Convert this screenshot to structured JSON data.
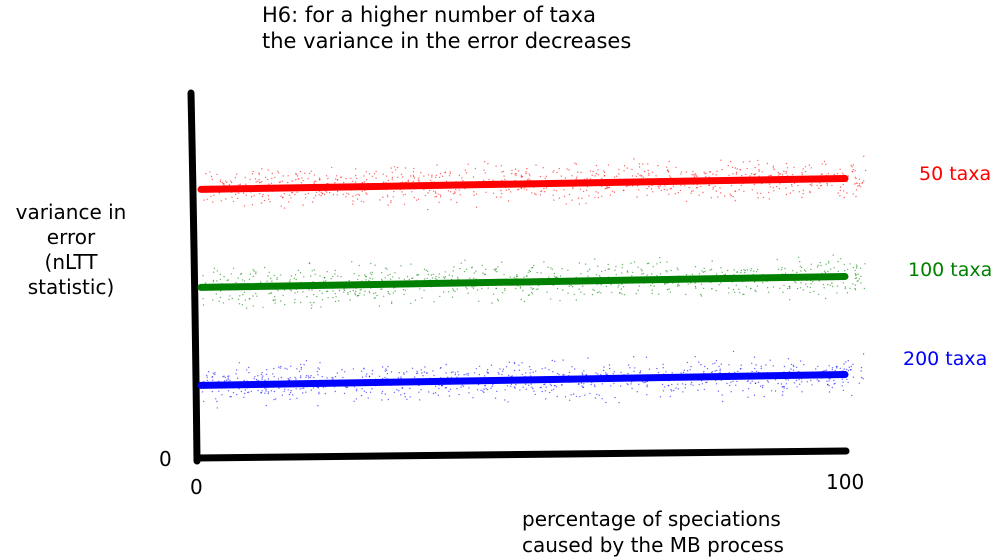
{
  "title": {
    "line1": "H6: for a higher number of taxa",
    "line2": "the variance in the error decreases"
  },
  "chart_data": {
    "type": "line",
    "title": "H6: for a higher number of taxa the variance in the error decreases",
    "xlabel": "percentage of speciations caused by the MB process",
    "ylabel": "variance in error (nLTT statistic)",
    "x_ticks": [
      "0",
      "100"
    ],
    "y_ticks": [
      "0"
    ],
    "xlim": [
      0,
      100
    ],
    "grid": false,
    "legend": "right",
    "series": [
      {
        "name": "50 taxa",
        "color": "#ff0000",
        "x": [
          0,
          100
        ],
        "y": [
          0.74,
          0.77
        ]
      },
      {
        "name": "100 taxa",
        "color": "#008000",
        "x": [
          0,
          100
        ],
        "y": [
          0.47,
          0.5
        ]
      },
      {
        "name": "200 taxa",
        "color": "#0000ff",
        "x": [
          0,
          100
        ],
        "y": [
          0.2,
          0.23
        ]
      }
    ]
  },
  "labels": {
    "ylabel_line1": "variance in",
    "ylabel_line2": "error",
    "ylabel_line3": "(nLTT statistic)",
    "xlabel_line1": "percentage of speciations",
    "xlabel_line2": "caused by the MB process",
    "x_tick_min": "0",
    "x_tick_max": "100",
    "y_tick_min": "0",
    "legend_50": "50 taxa",
    "legend_100": "100 taxa",
    "legend_200": "200 taxa"
  }
}
